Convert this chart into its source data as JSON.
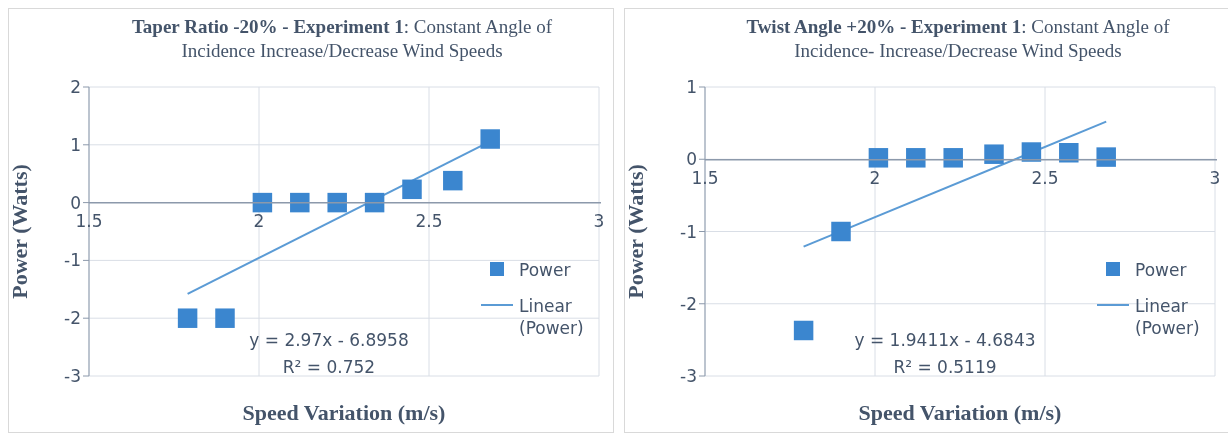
{
  "chart_data": [
    {
      "type": "scatter",
      "title": "Taper Ratio -20% - Experiment 1: Constant Angle of Incidence Increase/Decrease Wind Speeds",
      "xlabel": "Speed Variation (m/s)",
      "ylabel": "Power (Watts)",
      "xlim": [
        1.5,
        3
      ],
      "xticks": [
        1.5,
        2,
        2.5,
        3
      ],
      "ylim": [
        -3,
        2
      ],
      "yticks": [
        -3,
        -2,
        -1,
        0,
        1,
        2
      ],
      "grid": true,
      "legend": "right",
      "series": [
        {
          "name": "Power",
          "type": "scatter",
          "marker": "square",
          "color": "#3b86cf",
          "x": [
            1.79,
            1.9,
            2.01,
            2.12,
            2.23,
            2.34,
            2.45,
            2.57,
            2.68
          ],
          "values": [
            -2,
            -2,
            0,
            0,
            0,
            0,
            0.23,
            0.38,
            1.1
          ]
        },
        {
          "name": "Linear (Power)",
          "type": "line",
          "color": "#5b9bd5",
          "line_style": "solid",
          "x": [
            1.79,
            2.68
          ],
          "values": [
            -1.58,
            1.06
          ]
        }
      ],
      "annotations": [
        "y = 2.97x - 6.8958",
        "R² = 0.752"
      ]
    },
    {
      "type": "scatter",
      "title": "Twist Angle +20% - Experiment 1: Constant Angle of Incidence- Increase/Decrease Wind Speeds",
      "xlabel": "Speed Variation (m/s)",
      "ylabel": "Power (Watts)",
      "xlim": [
        1.5,
        3
      ],
      "xticks": [
        1.5,
        2,
        2.5,
        3
      ],
      "ylim": [
        -3,
        1
      ],
      "yticks": [
        -3,
        -2,
        -1,
        0,
        1
      ],
      "grid": true,
      "legend": "right",
      "series": [
        {
          "name": "Power",
          "type": "scatter",
          "marker": "square",
          "color": "#3b86cf",
          "x": [
            1.79,
            1.9,
            2.01,
            2.12,
            2.23,
            2.35,
            2.46,
            2.57,
            2.68
          ],
          "values": [
            -2.37,
            -1,
            0.02,
            0.02,
            0.02,
            0.07,
            0.1,
            0.09,
            0.03
          ]
        },
        {
          "name": "Linear (Power)",
          "type": "line",
          "color": "#5b9bd5",
          "line_style": "solid",
          "x": [
            1.79,
            2.68
          ],
          "values": [
            -1.21,
            0.52
          ]
        }
      ],
      "annotations": [
        "y = 1.9411x - 4.6843",
        "R² = 0.5119"
      ]
    }
  ]
}
